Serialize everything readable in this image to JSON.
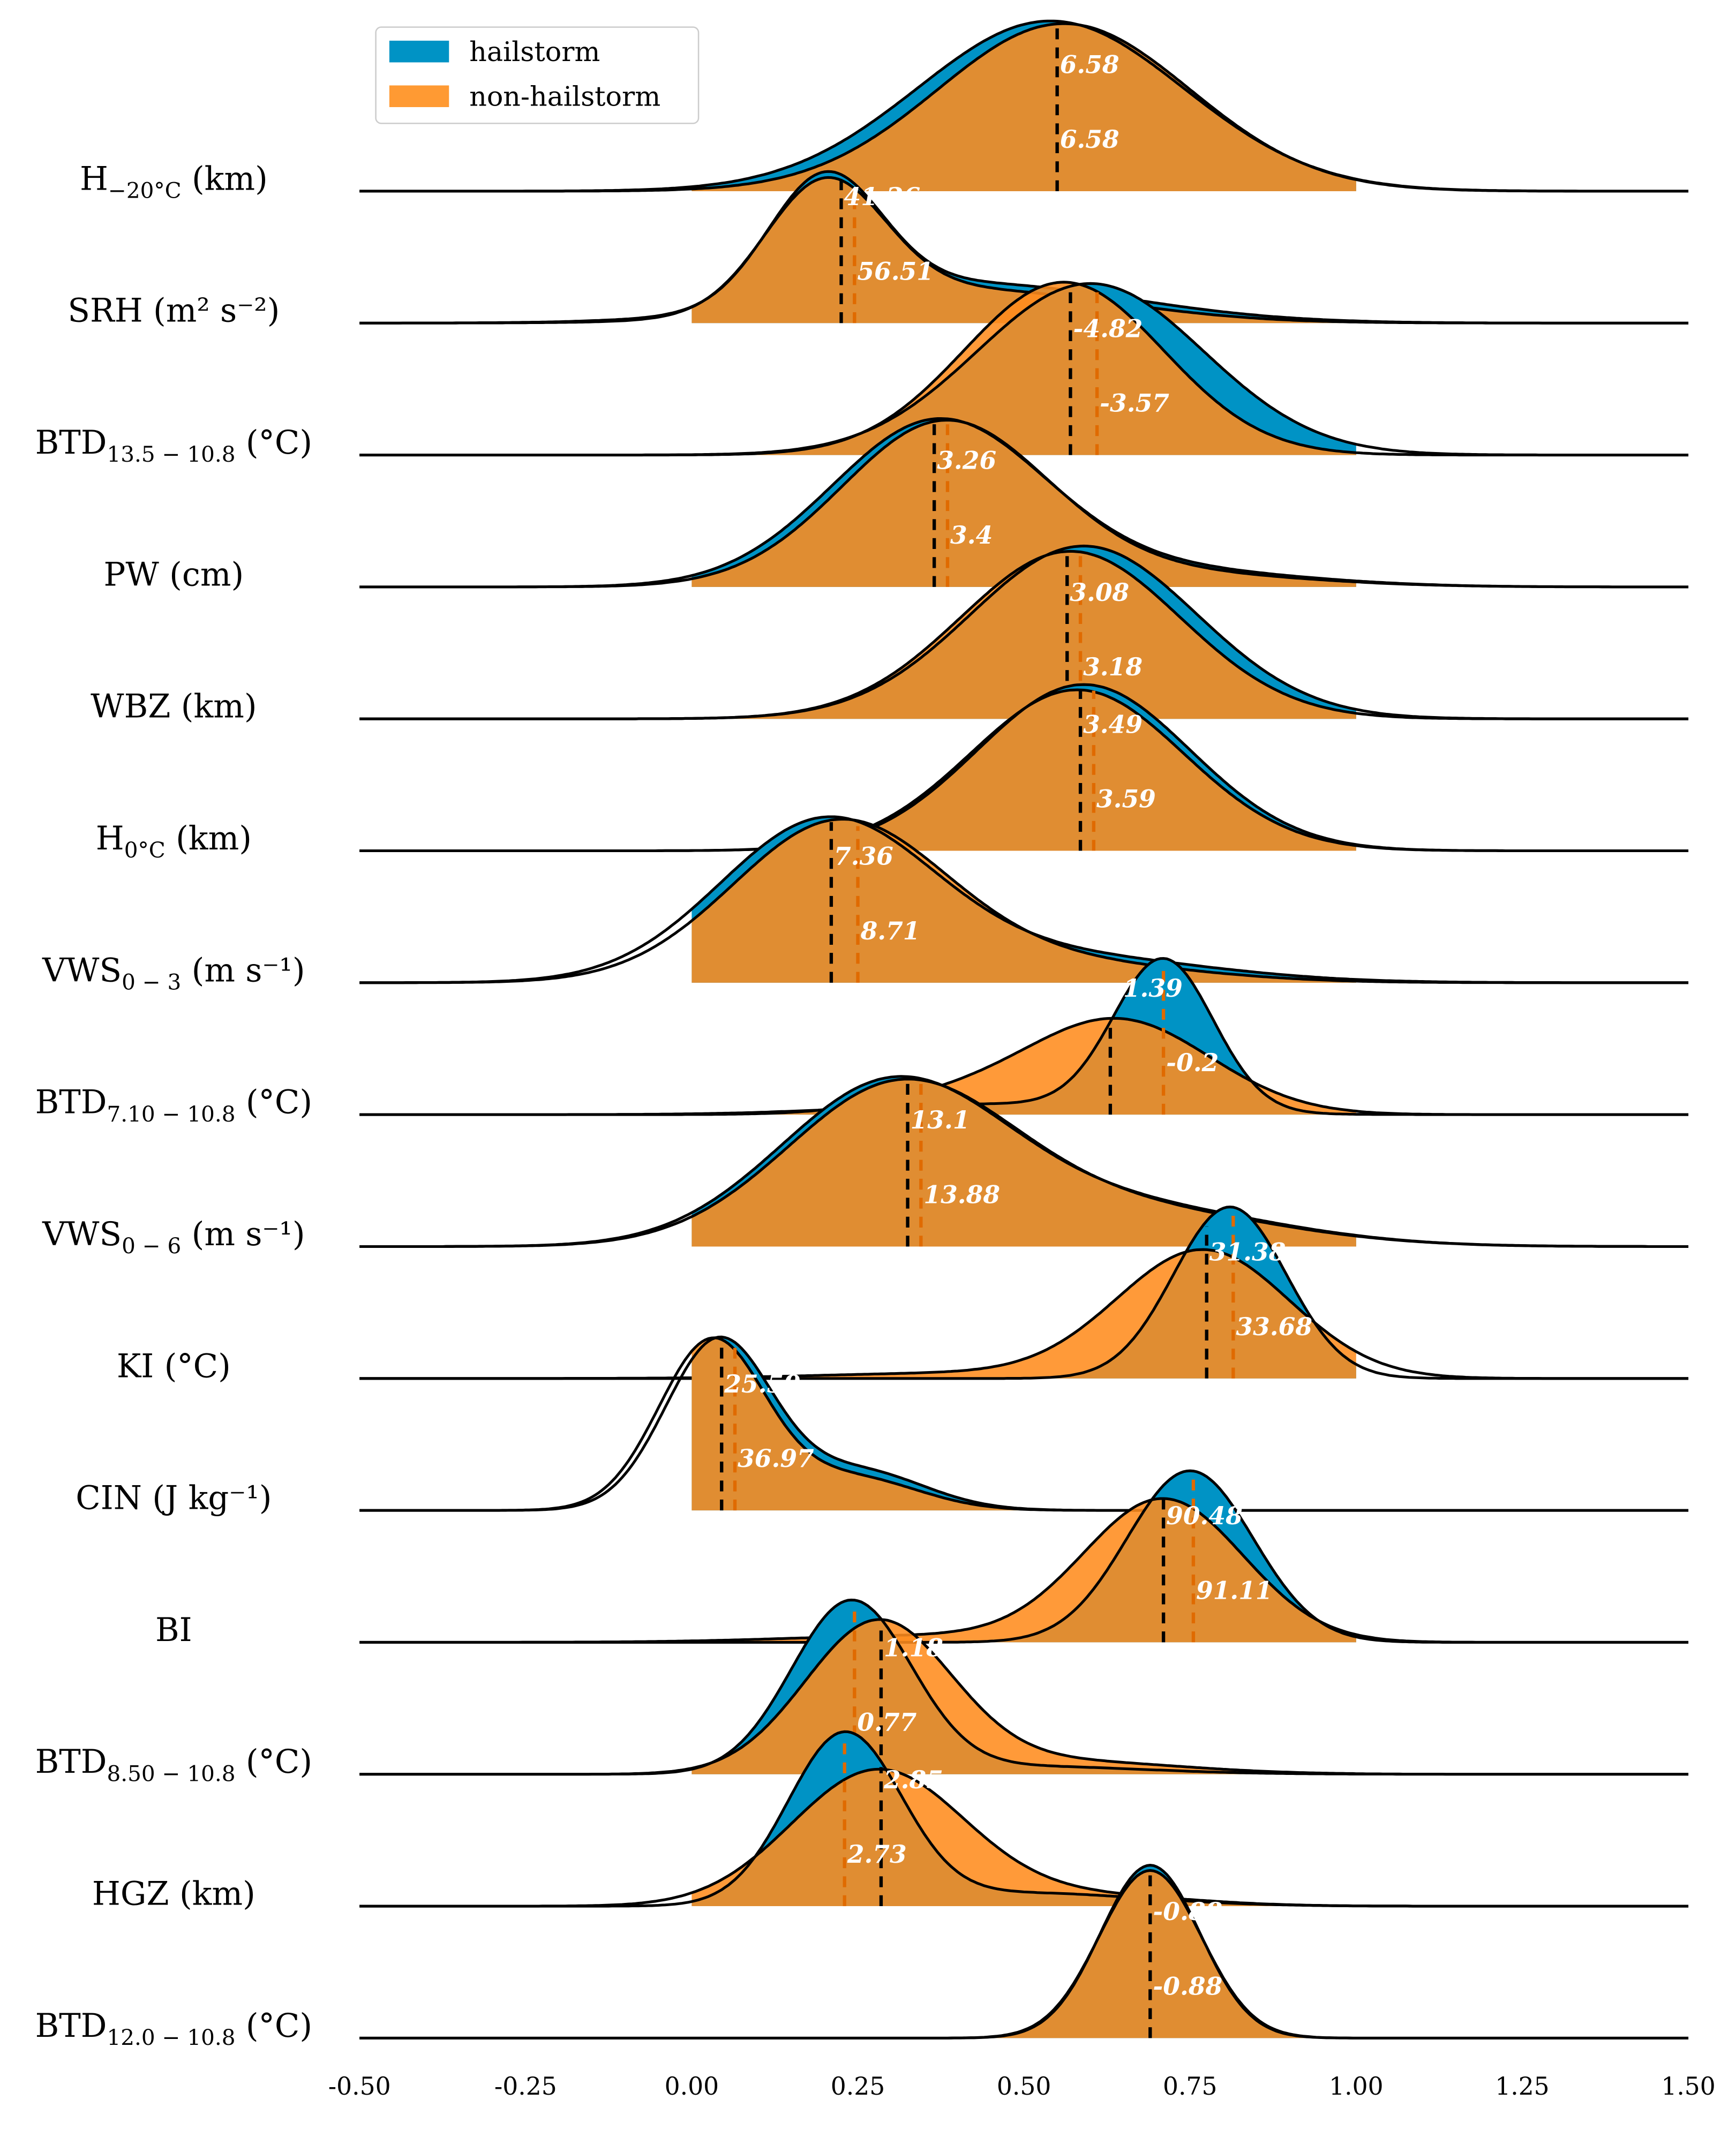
{
  "colors": {
    "hailstorm": "#0093c5",
    "non_hailstorm": "#ff8c1e",
    "outline": "#000000",
    "non_median": "#e06a00"
  },
  "chart_data": {
    "type": "ridgeline",
    "xlim": [
      -0.5,
      1.5
    ],
    "xticks": [
      "-0.50",
      "-0.25",
      "0.00",
      "0.25",
      "0.50",
      "0.75",
      "1.00",
      "1.25",
      "1.50"
    ],
    "xtick_values": [
      -0.5,
      -0.25,
      0,
      0.25,
      0.5,
      0.75,
      1.0,
      1.25,
      1.5
    ],
    "fill_range": [
      0,
      1
    ],
    "legend": {
      "placement": "top-left",
      "entries": [
        {
          "name": "hailstorm"
        },
        {
          "name": "non-hailstorm"
        }
      ]
    },
    "rows": [
      {
        "label": {
          "base": "H",
          "sub": "−20°C",
          "unit": " (km)"
        },
        "hail": {
          "median_x": 0.55,
          "median_label": "6.58",
          "density": [
            [
              0.54,
              0.2,
              1.29
            ]
          ]
        },
        "non": {
          "median_x": 0.55,
          "median_label": "6.58",
          "density": [
            [
              0.56,
              0.19,
              1.27
            ]
          ]
        }
      },
      {
        "label": {
          "base": "SRH (m² s⁻²)",
          "sub": "",
          "unit": ""
        },
        "hail": {
          "median_x": 0.225,
          "median_label": "41.26",
          "density": [
            [
              0.2,
              0.085,
              0.95
            ],
            [
              0.42,
              0.24,
              0.3
            ]
          ]
        },
        "non": {
          "median_x": 0.245,
          "median_label": "56.51",
          "density": [
            [
              0.2,
              0.09,
              0.95
            ],
            [
              0.42,
              0.22,
              0.25
            ]
          ]
        }
      },
      {
        "label": {
          "base": "BTD",
          "sub": "13.5 − 10.8",
          "unit": " (°C)"
        },
        "hail": {
          "median_x": 0.57,
          "median_label": "-4.82",
          "density": [
            [
              0.6,
              0.17,
              1.3
            ]
          ]
        },
        "non": {
          "median_x": 0.61,
          "median_label": "-3.57",
          "density": [
            [
              0.56,
              0.15,
              1.31
            ]
          ]
        }
      },
      {
        "label": {
          "base": "PW (cm)",
          "sub": "",
          "unit": ""
        },
        "hail": {
          "median_x": 0.365,
          "median_label": "3.26",
          "density": [
            [
              0.37,
              0.16,
              1.25
            ],
            [
              0.72,
              0.2,
              0.12
            ]
          ]
        },
        "non": {
          "median_x": 0.385,
          "median_label": "3.4",
          "density": [
            [
              0.38,
              0.155,
              1.24
            ],
            [
              0.72,
              0.2,
              0.1
            ]
          ]
        }
      },
      {
        "label": {
          "base": "WBZ (km)",
          "sub": "",
          "unit": ""
        },
        "hail": {
          "median_x": 0.565,
          "median_label": "3.08",
          "density": [
            [
              0.59,
              0.17,
              1.31
            ]
          ]
        },
        "non": {
          "median_x": 0.585,
          "median_label": "3.18",
          "density": [
            [
              0.57,
              0.165,
              1.27
            ]
          ]
        }
      },
      {
        "label": {
          "base": "H",
          "sub": "0°C",
          "unit": " (km)"
        },
        "hail": {
          "median_x": 0.585,
          "median_label": "3.49",
          "density": [
            [
              0.59,
              0.16,
              1.26
            ]
          ]
        },
        "non": {
          "median_x": 0.605,
          "median_label": "3.59",
          "density": [
            [
              0.58,
              0.16,
              1.22
            ]
          ]
        }
      },
      {
        "label": {
          "base": "VWS",
          "sub": "0 − 3",
          "unit": " (m s⁻¹)"
        },
        "hail": {
          "median_x": 0.21,
          "median_label": "7.36",
          "density": [
            [
              0.2,
              0.16,
              1.2
            ],
            [
              0.55,
              0.22,
              0.2
            ]
          ]
        },
        "non": {
          "median_x": 0.25,
          "median_label": "8.71",
          "density": [
            [
              0.22,
              0.16,
              1.2
            ],
            [
              0.55,
              0.2,
              0.15
            ]
          ]
        }
      },
      {
        "label": {
          "base": "BTD",
          "sub": "7.10 − 10.8",
          "unit": " (°C)"
        },
        "hail": {
          "median_x": 0.63,
          "median_label": "-1.39",
          "density": [
            [
              0.71,
              0.075,
              1.15
            ],
            [
              0.45,
              0.2,
              0.08
            ]
          ]
        },
        "non": {
          "median_x": 0.71,
          "median_label": "-0.2",
          "density": [
            [
              0.64,
              0.14,
              0.72
            ],
            [
              0.38,
              0.12,
              0.1
            ]
          ]
        }
      },
      {
        "label": {
          "base": "VWS",
          "sub": "0 − 6",
          "unit": " (m s⁻¹)"
        },
        "hail": {
          "median_x": 0.325,
          "median_label": "13.1",
          "density": [
            [
              0.3,
              0.17,
              1.2
            ],
            [
              0.65,
              0.22,
              0.3
            ]
          ]
        },
        "non": {
          "median_x": 0.345,
          "median_label": "13.88",
          "density": [
            [
              0.31,
              0.17,
              1.18
            ],
            [
              0.65,
              0.22,
              0.28
            ]
          ]
        }
      },
      {
        "label": {
          "base": "KI (°C)",
          "sub": "",
          "unit": ""
        },
        "hail": {
          "median_x": 0.775,
          "median_label": "31.38",
          "density": [
            [
              0.81,
              0.085,
              1.3
            ]
          ]
        },
        "non": {
          "median_x": 0.815,
          "median_label": "33.68",
          "density": [
            [
              0.77,
              0.13,
              0.97
            ],
            [
              0.4,
              0.2,
              0.04
            ]
          ]
        }
      },
      {
        "label": {
          "base": "CIN (J kg⁻¹)",
          "sub": "",
          "unit": ""
        },
        "hail": {
          "median_x": 0.045,
          "median_label": "25.59",
          "density": [
            [
              0.04,
              0.08,
              1.28
            ],
            [
              0.25,
              0.1,
              0.3
            ]
          ]
        },
        "non": {
          "median_x": 0.065,
          "median_label": "36.97",
          "density": [
            [
              0.03,
              0.08,
              1.28
            ],
            [
              0.24,
              0.1,
              0.25
            ]
          ]
        }
      },
      {
        "label": {
          "base": "BI",
          "sub": "",
          "unit": ""
        },
        "hail": {
          "median_x": 0.71,
          "median_label": "90.48",
          "density": [
            [
              0.75,
              0.095,
              1.3
            ]
          ]
        },
        "non": {
          "median_x": 0.755,
          "median_label": "91.11",
          "density": [
            [
              0.71,
              0.12,
              1.08
            ],
            [
              0.35,
              0.2,
              0.05
            ]
          ]
        }
      },
      {
        "label": {
          "base": "BTD",
          "sub": "8.50 − 10.8",
          "unit": " (°C)"
        },
        "hail": {
          "median_x": 0.285,
          "median_label": "1.18",
          "density": [
            [
              0.24,
              0.09,
              1.3
            ],
            [
              0.5,
              0.18,
              0.06
            ]
          ]
        },
        "non": {
          "median_x": 0.245,
          "median_label": "0.77",
          "density": [
            [
              0.28,
              0.11,
              1.14
            ],
            [
              0.55,
              0.18,
              0.1
            ]
          ]
        }
      },
      {
        "label": {
          "base": "HGZ (km)",
          "sub": "",
          "unit": ""
        },
        "hail": {
          "median_x": 0.285,
          "median_label": "2.85",
          "density": [
            [
              0.23,
              0.085,
              1.29
            ],
            [
              0.5,
              0.18,
              0.1
            ]
          ]
        },
        "non": {
          "median_x": 0.23,
          "median_label": "2.73",
          "density": [
            [
              0.28,
              0.13,
              1.03
            ],
            [
              0.6,
              0.15,
              0.08
            ]
          ]
        }
      },
      {
        "label": {
          "base": "BTD",
          "sub": "12.0 − 10.8",
          "unit": " (°C)"
        },
        "hail": {
          "median_x": 0.69,
          "median_label": "-0.88",
          "density": [
            [
              0.69,
              0.075,
              1.31
            ]
          ]
        },
        "non": {
          "median_x": 0.69,
          "median_label": "-0.88",
          "density": [
            [
              0.69,
              0.077,
              1.27
            ]
          ]
        }
      }
    ]
  }
}
